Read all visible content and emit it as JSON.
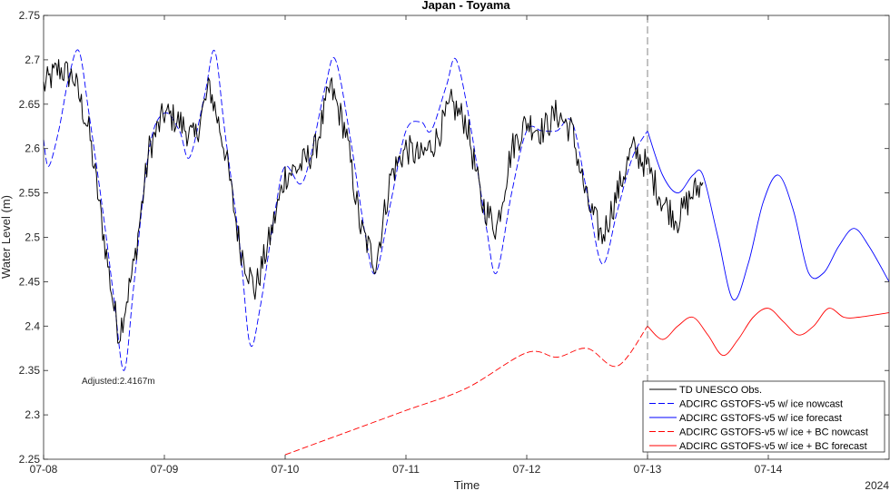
{
  "chart_data": {
    "type": "line",
    "title": "Japan - Toyama",
    "xlabel": "Time",
    "ylabel": "Water Level (m)",
    "year_label": "2024",
    "xlim": [
      "2024-07-08 00:00",
      "2024-07-15 00:00"
    ],
    "ylim": [
      2.25,
      2.75
    ],
    "x_ticks": [
      "07-08",
      "07-09",
      "07-10",
      "07-11",
      "07-12",
      "07-13",
      "07-14"
    ],
    "y_ticks": [
      "2.25",
      "2.3",
      "2.35",
      "2.4",
      "2.45",
      "2.5",
      "2.55",
      "2.6",
      "2.65",
      "2.7",
      "2.75"
    ],
    "grid": false,
    "legend_position": "bottom-right",
    "forecast_start": "2024-07-13 00:00",
    "annotation": "Adjusted:2.4167m",
    "colors": {
      "blue": "#0000ff",
      "red": "#ff0000",
      "black": "#000000"
    },
    "series": [
      {
        "name": "TD UNESCO Obs.",
        "color": "#000000",
        "style": "solid",
        "points": [
          [
            "07-08 00:00",
            2.67
          ],
          [
            "07-08 03:00",
            2.69
          ],
          [
            "07-08 06:00",
            2.68
          ],
          [
            "07-08 09:00",
            2.62
          ],
          [
            "07-08 12:00",
            2.5
          ],
          [
            "07-08 14:00",
            2.42
          ],
          [
            "07-08 15:00",
            2.39
          ],
          [
            "07-08 18:00",
            2.47
          ],
          [
            "07-08 21:00",
            2.6
          ],
          [
            "07-09 00:00",
            2.64
          ],
          [
            "07-09 03:00",
            2.63
          ],
          [
            "07-09 06:00",
            2.61
          ],
          [
            "07-09 09:00",
            2.67
          ],
          [
            "07-09 12:00",
            2.6
          ],
          [
            "07-09 15:00",
            2.49
          ],
          [
            "07-09 18:00",
            2.44
          ],
          [
            "07-09 21:00",
            2.5
          ],
          [
            "07-10 00:00",
            2.57
          ],
          [
            "07-10 03:00",
            2.58
          ],
          [
            "07-10 06:00",
            2.6
          ],
          [
            "07-10 09:00",
            2.67
          ],
          [
            "07-10 12:00",
            2.62
          ],
          [
            "07-10 15:00",
            2.51
          ],
          [
            "07-10 18:00",
            2.47
          ],
          [
            "07-10 21:00",
            2.57
          ],
          [
            "07-11 00:00",
            2.6
          ],
          [
            "07-11 03:00",
            2.59
          ],
          [
            "07-11 06:00",
            2.61
          ],
          [
            "07-11 09:00",
            2.65
          ],
          [
            "07-11 12:00",
            2.63
          ],
          [
            "07-11 15:00",
            2.54
          ],
          [
            "07-11 18:00",
            2.51
          ],
          [
            "07-11 21:00",
            2.6
          ],
          [
            "07-12 00:00",
            2.63
          ],
          [
            "07-12 03:00",
            2.62
          ],
          [
            "07-12 06:00",
            2.64
          ],
          [
            "07-12 09:00",
            2.62
          ],
          [
            "07-12 12:00",
            2.54
          ],
          [
            "07-12 15:00",
            2.5
          ],
          [
            "07-12 18:00",
            2.55
          ],
          [
            "07-12 21:00",
            2.6
          ],
          [
            "07-13 00:00",
            2.58
          ],
          [
            "07-13 03:00",
            2.54
          ],
          [
            "07-13 06:00",
            2.52
          ],
          [
            "07-13 09:00",
            2.55
          ],
          [
            "07-13 11:00",
            2.56
          ]
        ]
      },
      {
        "name": "ADCIRC GSTOFS-v5 w/ ice nowcast",
        "color": "#0000ff",
        "style": "dashed",
        "points": [
          [
            "07-08 00:00",
            2.61
          ],
          [
            "07-08 01:00",
            2.58
          ],
          [
            "07-08 03:00",
            2.62
          ],
          [
            "07-08 05:00",
            2.68
          ],
          [
            "07-08 07:00",
            2.71
          ],
          [
            "07-08 09:00",
            2.64
          ],
          [
            "07-08 12:00",
            2.52
          ],
          [
            "07-08 14:00",
            2.43
          ],
          [
            "07-08 16:00",
            2.35
          ],
          [
            "07-08 18:00",
            2.45
          ],
          [
            "07-08 21:00",
            2.6
          ],
          [
            "07-09 00:00",
            2.64
          ],
          [
            "07-09 03:00",
            2.62
          ],
          [
            "07-09 05:00",
            2.59
          ],
          [
            "07-09 08:00",
            2.66
          ],
          [
            "07-09 10:00",
            2.71
          ],
          [
            "07-09 12:00",
            2.62
          ],
          [
            "07-09 15:00",
            2.49
          ],
          [
            "07-09 17:00",
            2.38
          ],
          [
            "07-09 19:00",
            2.42
          ],
          [
            "07-09 22:00",
            2.53
          ],
          [
            "07-10 00:00",
            2.58
          ],
          [
            "07-10 03:00",
            2.56
          ],
          [
            "07-10 05:00",
            2.59
          ],
          [
            "07-10 08:00",
            2.67
          ],
          [
            "07-10 10:00",
            2.7
          ],
          [
            "07-10 13:00",
            2.61
          ],
          [
            "07-10 16:00",
            2.5
          ],
          [
            "07-10 18:00",
            2.46
          ],
          [
            "07-10 21:00",
            2.54
          ],
          [
            "07-11 00:00",
            2.62
          ],
          [
            "07-11 03:00",
            2.63
          ],
          [
            "07-11 05:00",
            2.62
          ],
          [
            "07-11 08:00",
            2.67
          ],
          [
            "07-11 10:00",
            2.7
          ],
          [
            "07-11 13:00",
            2.62
          ],
          [
            "07-11 16:00",
            2.51
          ],
          [
            "07-11 18:00",
            2.46
          ],
          [
            "07-11 21:00",
            2.55
          ],
          [
            "07-12 00:00",
            2.62
          ],
          [
            "07-12 03:00",
            2.62
          ],
          [
            "07-12 06:00",
            2.62
          ],
          [
            "07-12 09:00",
            2.63
          ],
          [
            "07-12 12:00",
            2.55
          ],
          [
            "07-12 15:00",
            2.47
          ],
          [
            "07-12 18:00",
            2.53
          ],
          [
            "07-12 21:00",
            2.59
          ],
          [
            "07-13 00:00",
            2.62
          ]
        ]
      },
      {
        "name": "ADCIRC GSTOFS-v5 w/ ice forecast",
        "color": "#0000ff",
        "style": "solid",
        "points": [
          [
            "07-13 00:00",
            2.62
          ],
          [
            "07-13 03:00",
            2.57
          ],
          [
            "07-13 06:00",
            2.55
          ],
          [
            "07-13 09:00",
            2.57
          ],
          [
            "07-13 11:00",
            2.57
          ],
          [
            "07-13 14:00",
            2.5
          ],
          [
            "07-13 17:00",
            2.43
          ],
          [
            "07-13 20:00",
            2.47
          ],
          [
            "07-13 23:00",
            2.54
          ],
          [
            "07-14 02:00",
            2.57
          ],
          [
            "07-14 05:00",
            2.53
          ],
          [
            "07-14 08:00",
            2.46
          ],
          [
            "07-14 11:00",
            2.46
          ],
          [
            "07-14 14:00",
            2.49
          ],
          [
            "07-14 17:00",
            2.51
          ],
          [
            "07-14 20:00",
            2.49
          ],
          [
            "07-15 00:00",
            2.45
          ]
        ]
      },
      {
        "name": "ADCIRC GSTOFS-v5 w/ ice + BC nowcast",
        "color": "#ff0000",
        "style": "dashed",
        "points": [
          [
            "07-10 00:00",
            2.255
          ],
          [
            "07-10 12:00",
            2.28
          ],
          [
            "07-11 00:00",
            2.305
          ],
          [
            "07-11 12:00",
            2.33
          ],
          [
            "07-12 00:00",
            2.37
          ],
          [
            "07-12 06:00",
            2.365
          ],
          [
            "07-12 12:00",
            2.375
          ],
          [
            "07-12 18:00",
            2.355
          ],
          [
            "07-13 00:00",
            2.4
          ]
        ]
      },
      {
        "name": "ADCIRC GSTOFS-v5 w/ ice + BC forecast",
        "color": "#ff0000",
        "style": "solid",
        "points": [
          [
            "07-13 00:00",
            2.4
          ],
          [
            "07-13 03:00",
            2.385
          ],
          [
            "07-13 06:00",
            2.4
          ],
          [
            "07-13 09:00",
            2.41
          ],
          [
            "07-13 12:00",
            2.39
          ],
          [
            "07-13 15:00",
            2.367
          ],
          [
            "07-13 18:00",
            2.385
          ],
          [
            "07-13 21:00",
            2.41
          ],
          [
            "07-14 00:00",
            2.42
          ],
          [
            "07-14 03:00",
            2.405
          ],
          [
            "07-14 06:00",
            2.39
          ],
          [
            "07-14 09:00",
            2.4
          ],
          [
            "07-14 12:00",
            2.42
          ],
          [
            "07-14 15:00",
            2.41
          ],
          [
            "07-14 18:00",
            2.41
          ],
          [
            "07-15 00:00",
            2.415
          ]
        ]
      }
    ]
  }
}
